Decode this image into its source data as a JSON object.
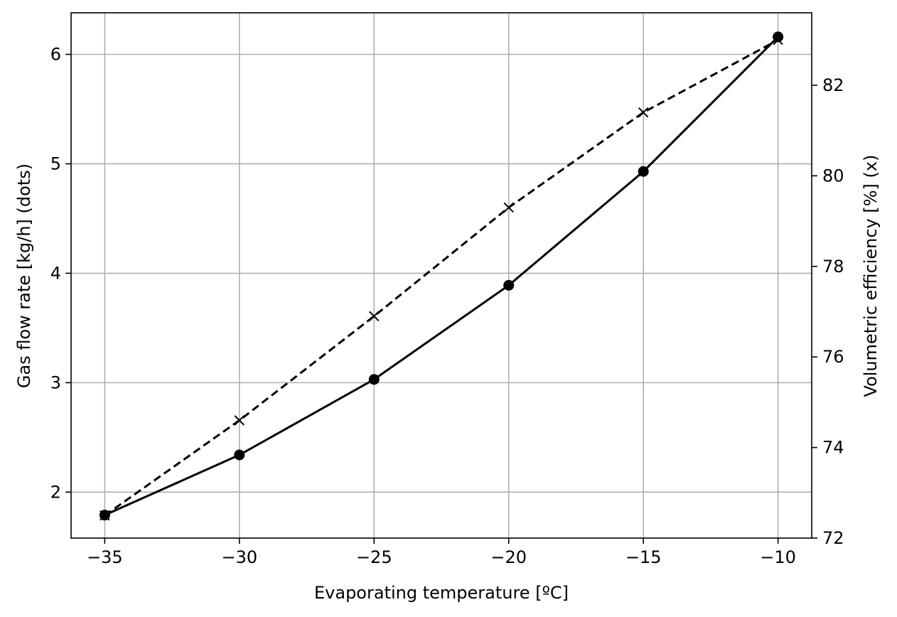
{
  "chart_data": {
    "type": "line",
    "xlabel": "Evaporating temperature [ºC]",
    "ylabel": "Gas flow rate [kg/h] (dots)",
    "y2label": "Volumetric efficiency [%] (x)",
    "x": [
      -35,
      -30,
      -25,
      -20,
      -15,
      -10
    ],
    "xlim": [
      -36.25,
      -8.75
    ],
    "ylim": [
      1.58,
      6.38
    ],
    "y2lim": [
      72.0,
      83.6
    ],
    "xticks": [
      -35,
      -30,
      -25,
      -20,
      -15,
      -10
    ],
    "xtick_labels": [
      "−35",
      "−30",
      "−25",
      "−20",
      "−15",
      "−10"
    ],
    "yticks": [
      2,
      3,
      4,
      5,
      6
    ],
    "ytick_labels": [
      "2",
      "3",
      "4",
      "5",
      "6"
    ],
    "y2ticks": [
      72,
      74,
      76,
      78,
      80,
      82
    ],
    "y2tick_labels": [
      "72",
      "74",
      "76",
      "78",
      "80",
      "82"
    ],
    "grid": true,
    "series": [
      {
        "axis": "left",
        "values": [
          1.79,
          2.34,
          3.03,
          3.89,
          4.93,
          6.16
        ],
        "line_style": "solid",
        "marker": "dot",
        "color": "#000000"
      },
      {
        "axis": "right",
        "values": [
          72.5,
          74.6,
          76.9,
          79.3,
          81.4,
          83.0
        ],
        "line_style": "dashed",
        "marker": "x",
        "color": "#000000"
      }
    ]
  }
}
